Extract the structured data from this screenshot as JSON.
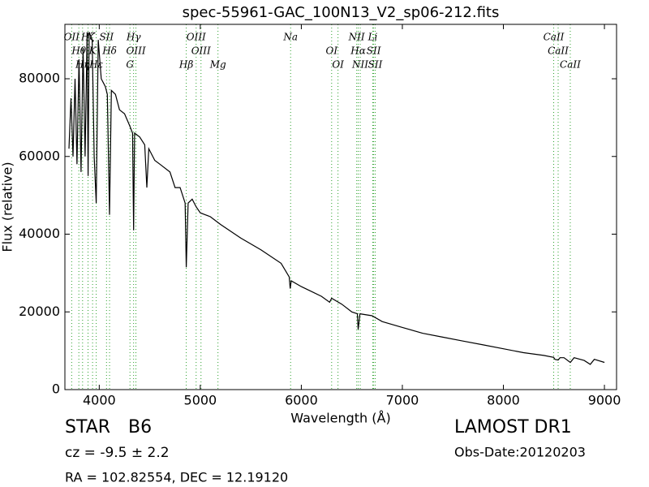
{
  "chart_data": {
    "type": "line",
    "title": "spec-55961-GAC_100N13_V2_sp06-212.fits",
    "xlabel": "Wavelength (Å)",
    "ylabel": "Flux (relative)",
    "xlim": [
      3660,
      9120
    ],
    "ylim": [
      0,
      94000
    ],
    "xticks": [
      4000,
      5000,
      6000,
      7000,
      8000,
      9000
    ],
    "yticks": [
      0,
      20000,
      40000,
      60000,
      80000
    ],
    "x": [
      3700,
      3720,
      3740,
      3760,
      3780,
      3800,
      3820,
      3840,
      3860,
      3880,
      3890,
      3900,
      3930,
      3950,
      3970,
      3990,
      4020,
      4060,
      4080,
      4102,
      4120,
      4160,
      4200,
      4250,
      4300,
      4330,
      4340,
      4350,
      4400,
      4450,
      4471,
      4490,
      4550,
      4600,
      4700,
      4750,
      4800,
      4850,
      4861,
      4880,
      4920,
      4960,
      5000,
      5100,
      5200,
      5400,
      5600,
      5800,
      5880,
      5890,
      5900,
      6000,
      6200,
      6280,
      6300,
      6400,
      6500,
      6555,
      6563,
      6580,
      6700,
      6800,
      7000,
      7200,
      7400,
      7600,
      7800,
      8000,
      8200,
      8400,
      8498,
      8510,
      8542,
      8560,
      8600,
      8662,
      8700,
      8800,
      8860,
      8900,
      9000
    ],
    "series": [
      {
        "color": "#000000",
        "values": [
          62000,
          75000,
          60000,
          80000,
          58000,
          85000,
          56000,
          88000,
          60000,
          92000,
          55000,
          92000,
          90000,
          60000,
          48000,
          90000,
          80000,
          78000,
          76000,
          45000,
          77000,
          76000,
          72000,
          71000,
          68000,
          66000,
          41000,
          66000,
          65000,
          63000,
          52000,
          62000,
          59000,
          58000,
          56000,
          52000,
          52000,
          48000,
          31500,
          48000,
          49000,
          47000,
          45500,
          44500,
          42500,
          39000,
          36000,
          32500,
          29000,
          26000,
          28000,
          26500,
          24000,
          22500,
          23500,
          22000,
          20000,
          19500,
          15500,
          19500,
          19000,
          17500,
          16000,
          14500,
          13500,
          12500,
          11500,
          10500,
          9500,
          8800,
          8300,
          7800,
          7600,
          8200,
          8200,
          7000,
          8200,
          7500,
          6500,
          7800,
          7000
        ]
      }
    ],
    "line_color": "#2ca02c",
    "lines": [
      {
        "wavelength": 3727,
        "label": "OII"
      },
      {
        "wavelength": 3798,
        "label": "Hθ"
      },
      {
        "wavelength": 3835,
        "label": "Hη"
      },
      {
        "wavelength": 3889,
        "label": "Hζ"
      },
      {
        "wavelength": 3934,
        "label": "K"
      },
      {
        "wavelength": 3970,
        "label": "Hε"
      },
      {
        "wavelength": 4072,
        "label": "SII"
      },
      {
        "wavelength": 4102,
        "label": "Hδ"
      },
      {
        "wavelength": 4304,
        "label": "G"
      },
      {
        "wavelength": 4340,
        "label": "Hγ"
      },
      {
        "wavelength": 4363,
        "label": "OIII"
      },
      {
        "wavelength": 4861,
        "label": "Hβ"
      },
      {
        "wavelength": 4959,
        "label": "OIII"
      },
      {
        "wavelength": 5007,
        "label": "OIII"
      },
      {
        "wavelength": 5175,
        "label": "Mg"
      },
      {
        "wavelength": 5894,
        "label": "Na"
      },
      {
        "wavelength": 6300,
        "label": "OI"
      },
      {
        "wavelength": 6363,
        "label": "OI"
      },
      {
        "wavelength": 6548,
        "label": "NII"
      },
      {
        "wavelength": 6563,
        "label": "Hα"
      },
      {
        "wavelength": 6583,
        "label": "NII"
      },
      {
        "wavelength": 6707,
        "label": "Li"
      },
      {
        "wavelength": 6716,
        "label": "SII"
      },
      {
        "wavelength": 6731,
        "label": "SII"
      },
      {
        "wavelength": 8498,
        "label": "CaII"
      },
      {
        "wavelength": 8542,
        "label": "CaII"
      },
      {
        "wavelength": 8662,
        "label": "CaII"
      }
    ]
  },
  "footer": {
    "class": "STAR",
    "subclass": "B6",
    "survey": "LAMOST DR1",
    "cz": "cz = -9.5  ± 2.2",
    "obs_date": "Obs-Date:20120203",
    "coords": "RA = 102.82554, DEC = 12.19120"
  }
}
